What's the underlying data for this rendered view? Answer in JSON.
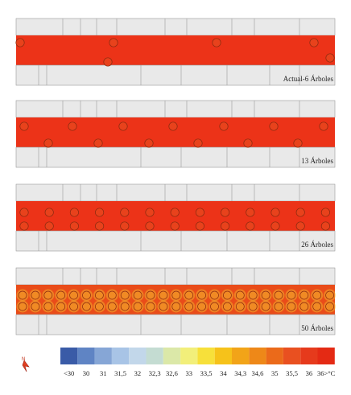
{
  "scenarios": [
    {
      "label": "Actual-6 Árboles",
      "trees": 6,
      "rows": "scattered"
    },
    {
      "label": "13 Árboles",
      "trees": 13,
      "rows": "alternating"
    },
    {
      "label": "26 Árboles",
      "trees": 26,
      "rows": "double"
    },
    {
      "label": "50 Árboles",
      "trees": 50,
      "rows": "double-dense"
    }
  ],
  "compass": {
    "label": "N",
    "icon": "north-arrow-icon"
  },
  "legend": {
    "unit": "°C",
    "labels": [
      "<30",
      "30",
      "31",
      "31,5",
      "32",
      "32,3",
      "32,6",
      "33",
      "33,5",
      "34",
      "34,3",
      "34,6",
      "35",
      "35,5",
      "36",
      "36>°C"
    ],
    "colors": [
      "#3a5ba7",
      "#5f84c4",
      "#86a6d6",
      "#a8c4e6",
      "#c2d7ea",
      "#c4dcd2",
      "#dbe8a8",
      "#f2ef7a",
      "#f7e03a",
      "#f6c21a",
      "#f2a418",
      "#ee8818",
      "#eb6a1a",
      "#e95020",
      "#e63a1c",
      "#e42a14"
    ]
  },
  "colors": {
    "street": "#ec3318",
    "street_warm": "#e8601c",
    "building": "#e9e9e9",
    "building_line": "#9a9a9a",
    "tree_outline": "#8a2a10"
  }
}
